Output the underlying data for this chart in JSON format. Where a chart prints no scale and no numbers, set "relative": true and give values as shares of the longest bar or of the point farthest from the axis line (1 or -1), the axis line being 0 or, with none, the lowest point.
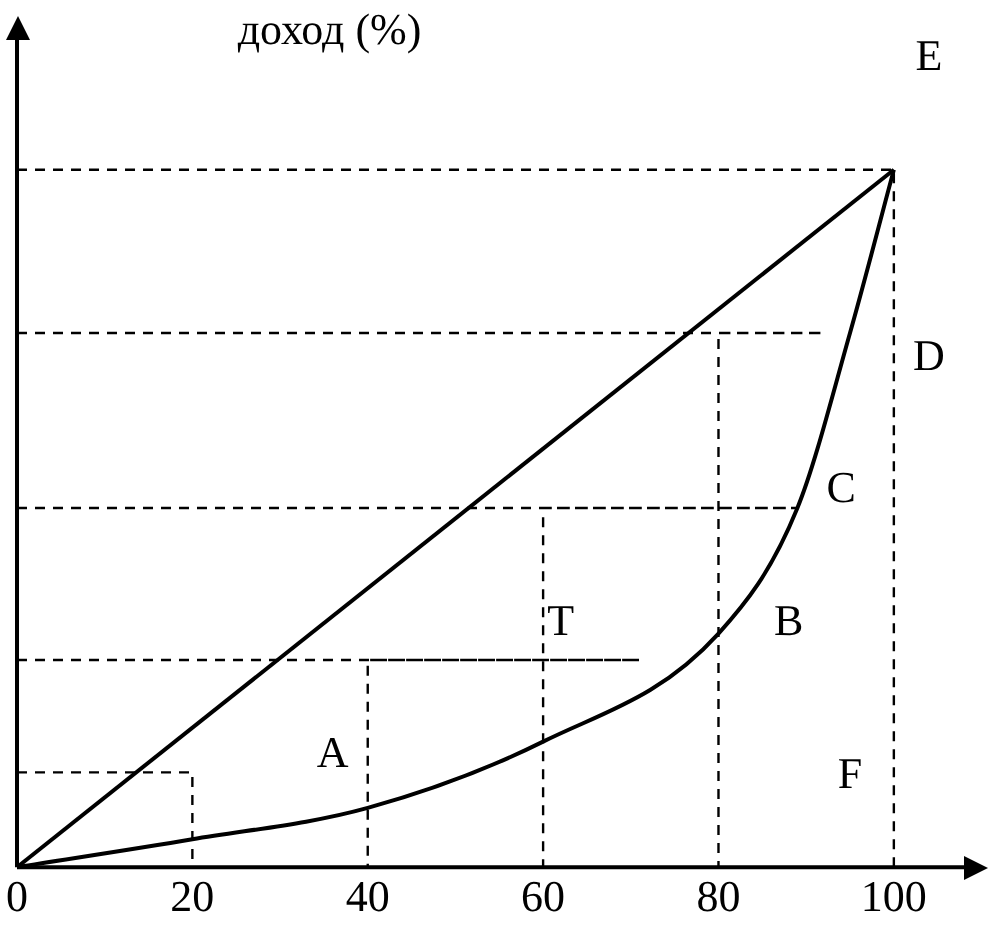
{
  "chart_data": {
    "type": "line",
    "ylabel": "доход (%)",
    "relative": true,
    "xlim": [
      0,
      108
    ],
    "xticks": [
      0,
      20,
      40,
      60,
      80,
      100
    ],
    "tick_labels": "x",
    "grid": false,
    "legend": false,
    "marker": "none",
    "series": [
      {
        "color": "#000000",
        "line_style": "solid",
        "x": [
          0,
          100
        ],
        "values": [
          0,
          1
        ]
      },
      {
        "color": "#000000",
        "line_style": "solid",
        "x": [
          0,
          20,
          40,
          60,
          80,
          89,
          95,
          100
        ],
        "values": [
          0,
          0.04,
          0.085,
          0.18,
          0.335,
          0.515,
          0.766,
          1
        ]
      },
      {
        "color": "#000000",
        "line_style": "dashed",
        "x": [
          0,
          20,
          20
        ],
        "values": [
          0.136,
          0.136,
          0
        ]
      },
      {
        "color": "#000000",
        "line_style": "dashed",
        "x": [
          0,
          71,
          40,
          40
        ],
        "values": [
          0.297,
          0.297,
          0.297,
          0
        ]
      },
      {
        "color": "#000000",
        "line_style": "dashed",
        "x": [
          0,
          89,
          60,
          60
        ],
        "values": [
          0.515,
          0.515,
          0.515,
          0
        ]
      },
      {
        "color": "#000000",
        "line_style": "dashed",
        "x": [
          0,
          92,
          80,
          80
        ],
        "values": [
          0.766,
          0.766,
          0.766,
          0
        ]
      },
      {
        "color": "#000000",
        "line_style": "dashed",
        "x": [
          0,
          100
        ],
        "values": [
          1,
          1
        ]
      },
      {
        "color": "#000000",
        "line_style": "dashed",
        "x": [
          100,
          100
        ],
        "values": [
          0,
          1
        ]
      }
    ],
    "annotations": [
      "A",
      "T",
      "B",
      "C",
      "D",
      "E",
      "F"
    ]
  }
}
